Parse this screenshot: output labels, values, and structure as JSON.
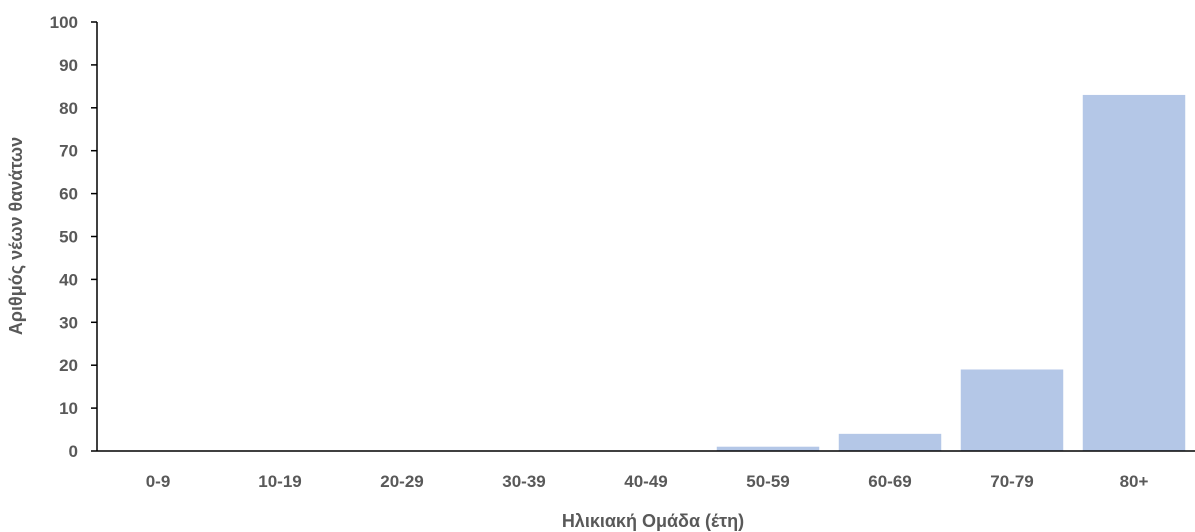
{
  "chart_data": {
    "type": "bar",
    "title": "",
    "xlabel": "Ηλικιακή Ομάδα (έτη)",
    "ylabel": "Αριθμός νέων θανάτων",
    "categories": [
      "0-9",
      "10-19",
      "20-29",
      "30-39",
      "40-49",
      "50-59",
      "60-69",
      "70-79",
      "80+"
    ],
    "values": [
      0,
      0,
      0,
      0,
      0,
      1,
      4,
      19,
      83
    ],
    "ylim": [
      0,
      100
    ],
    "yticks": [
      0,
      10,
      20,
      30,
      40,
      50,
      60,
      70,
      80,
      90,
      100
    ],
    "grid": false,
    "legend": "none",
    "bar_color": "#b4c7e7",
    "axis_color": "#000000",
    "text_color": "#595959"
  }
}
